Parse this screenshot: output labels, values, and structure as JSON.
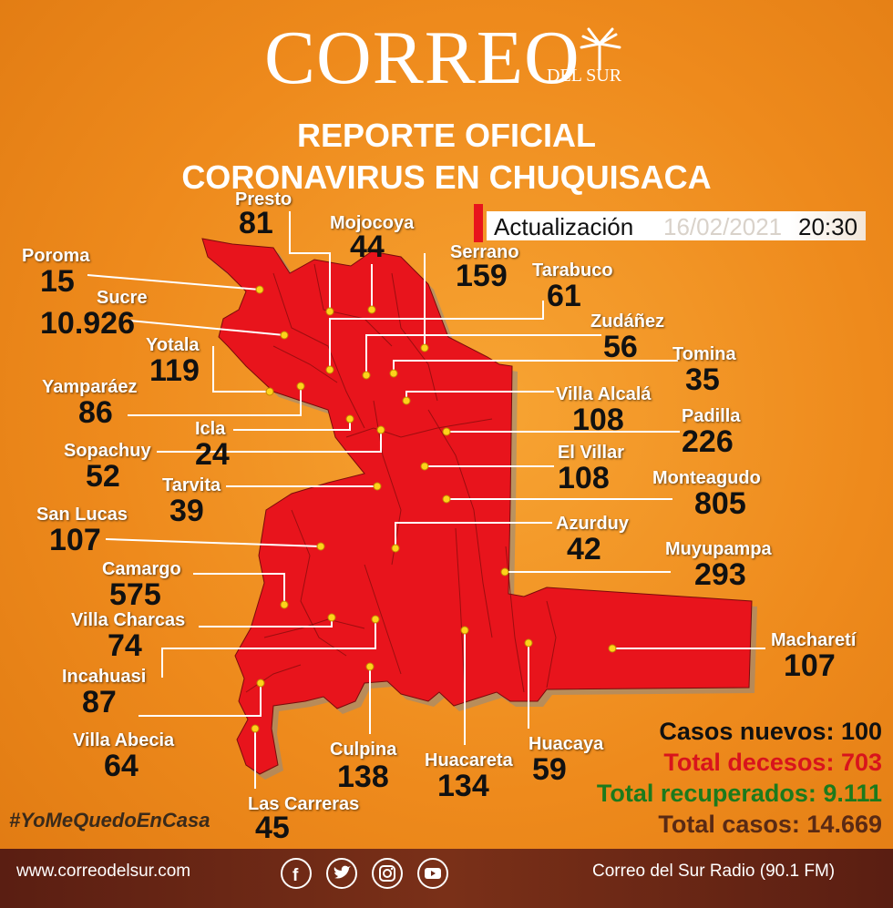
{
  "header": {
    "logo_main": "CORREO",
    "logo_sub": "DEL SUR",
    "title_line1": "REPORTE OFICIAL",
    "title_line2": "CORONAVIRUS EN CHUQUISACA"
  },
  "update": {
    "label": "Actualización",
    "date": "16/02/2021",
    "time": "20:30"
  },
  "municipalities": [
    {
      "name": "Presto",
      "value": "81"
    },
    {
      "name": "Mojocoya",
      "value": "44"
    },
    {
      "name": "Poroma",
      "value": "15"
    },
    {
      "name": "Serrano",
      "value": "159"
    },
    {
      "name": "Tarabuco",
      "value": "61"
    },
    {
      "name": "Sucre",
      "value": "10.926"
    },
    {
      "name": "Zudáñez",
      "value": "56"
    },
    {
      "name": "Yotala",
      "value": "119"
    },
    {
      "name": "Tomina",
      "value": "35"
    },
    {
      "name": "Yamparáez",
      "value": "86"
    },
    {
      "name": "Villa Alcalá",
      "value": "108"
    },
    {
      "name": "Padilla",
      "value": "226"
    },
    {
      "name": "Icla",
      "value": "24"
    },
    {
      "name": "Sopachuy",
      "value": "52"
    },
    {
      "name": "El Villar",
      "value": "108"
    },
    {
      "name": "Tarvita",
      "value": "39"
    },
    {
      "name": "Monteagudo",
      "value": "805"
    },
    {
      "name": "San Lucas",
      "value": "107"
    },
    {
      "name": "Azurduy",
      "value": "42"
    },
    {
      "name": "Muyupampa",
      "value": "293"
    },
    {
      "name": "Camargo",
      "value": "575"
    },
    {
      "name": "Villa Charcas",
      "value": "74"
    },
    {
      "name": "Macharetí",
      "value": "107"
    },
    {
      "name": "Incahuasi",
      "value": "87"
    },
    {
      "name": "Villa Abecia",
      "value": "64"
    },
    {
      "name": "Culpina",
      "value": "138"
    },
    {
      "name": "Huacareta",
      "value": "134"
    },
    {
      "name": "Huacaya",
      "value": "59"
    },
    {
      "name": "Las Carreras",
      "value": "45"
    }
  ],
  "summary": {
    "new_cases": "Casos nuevos: 100",
    "deaths": "Total decesos: 703",
    "recovered": "Total recuperados: 9.111",
    "total": "Total casos: 14.669",
    "colors": {
      "new_cases": "#111111",
      "deaths": "#d8141c",
      "recovered": "#1c7a1c",
      "total": "#5a2a14"
    }
  },
  "hashtag": "#YoMeQuedoEnCasa",
  "footer": {
    "site": "www.correodelsur.com",
    "radio": "Correo del Sur Radio (90.1 FM)",
    "social_icons": [
      "facebook-icon",
      "twitter-icon",
      "instagram-icon",
      "youtube-icon"
    ]
  }
}
